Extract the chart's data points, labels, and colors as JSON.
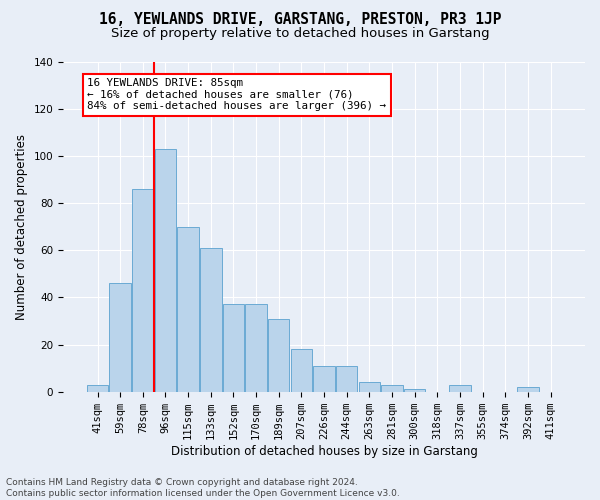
{
  "title": "16, YEWLANDS DRIVE, GARSTANG, PRESTON, PR3 1JP",
  "subtitle": "Size of property relative to detached houses in Garstang",
  "xlabel": "Distribution of detached houses by size in Garstang",
  "ylabel": "Number of detached properties",
  "bin_labels": [
    "41sqm",
    "59sqm",
    "78sqm",
    "96sqm",
    "115sqm",
    "133sqm",
    "152sqm",
    "170sqm",
    "189sqm",
    "207sqm",
    "226sqm",
    "244sqm",
    "263sqm",
    "281sqm",
    "300sqm",
    "318sqm",
    "337sqm",
    "355sqm",
    "374sqm",
    "392sqm",
    "411sqm"
  ],
  "bar_values": [
    3,
    46,
    86,
    103,
    70,
    61,
    37,
    37,
    31,
    18,
    11,
    11,
    4,
    3,
    1,
    0,
    3,
    0,
    0,
    2,
    0
  ],
  "bar_color": "#bad4eb",
  "bar_edge_color": "#6aaad4",
  "vline_color": "red",
  "vline_x_index": 2,
  "annotation_text": "16 YEWLANDS DRIVE: 85sqm\n← 16% of detached houses are smaller (76)\n84% of semi-detached houses are larger (396) →",
  "annotation_box_facecolor": "white",
  "annotation_box_edgecolor": "red",
  "ylim": [
    0,
    140
  ],
  "yticks": [
    0,
    20,
    40,
    60,
    80,
    100,
    120,
    140
  ],
  "footer_text": "Contains HM Land Registry data © Crown copyright and database right 2024.\nContains public sector information licensed under the Open Government Licence v3.0.",
  "bg_color": "#e8eef7",
  "plot_bg_color": "#e8eef7",
  "title_fontsize": 10.5,
  "subtitle_fontsize": 9.5,
  "xlabel_fontsize": 8.5,
  "ylabel_fontsize": 8.5,
  "tick_fontsize": 7.5,
  "footer_fontsize": 6.5,
  "annotation_fontsize": 7.8
}
